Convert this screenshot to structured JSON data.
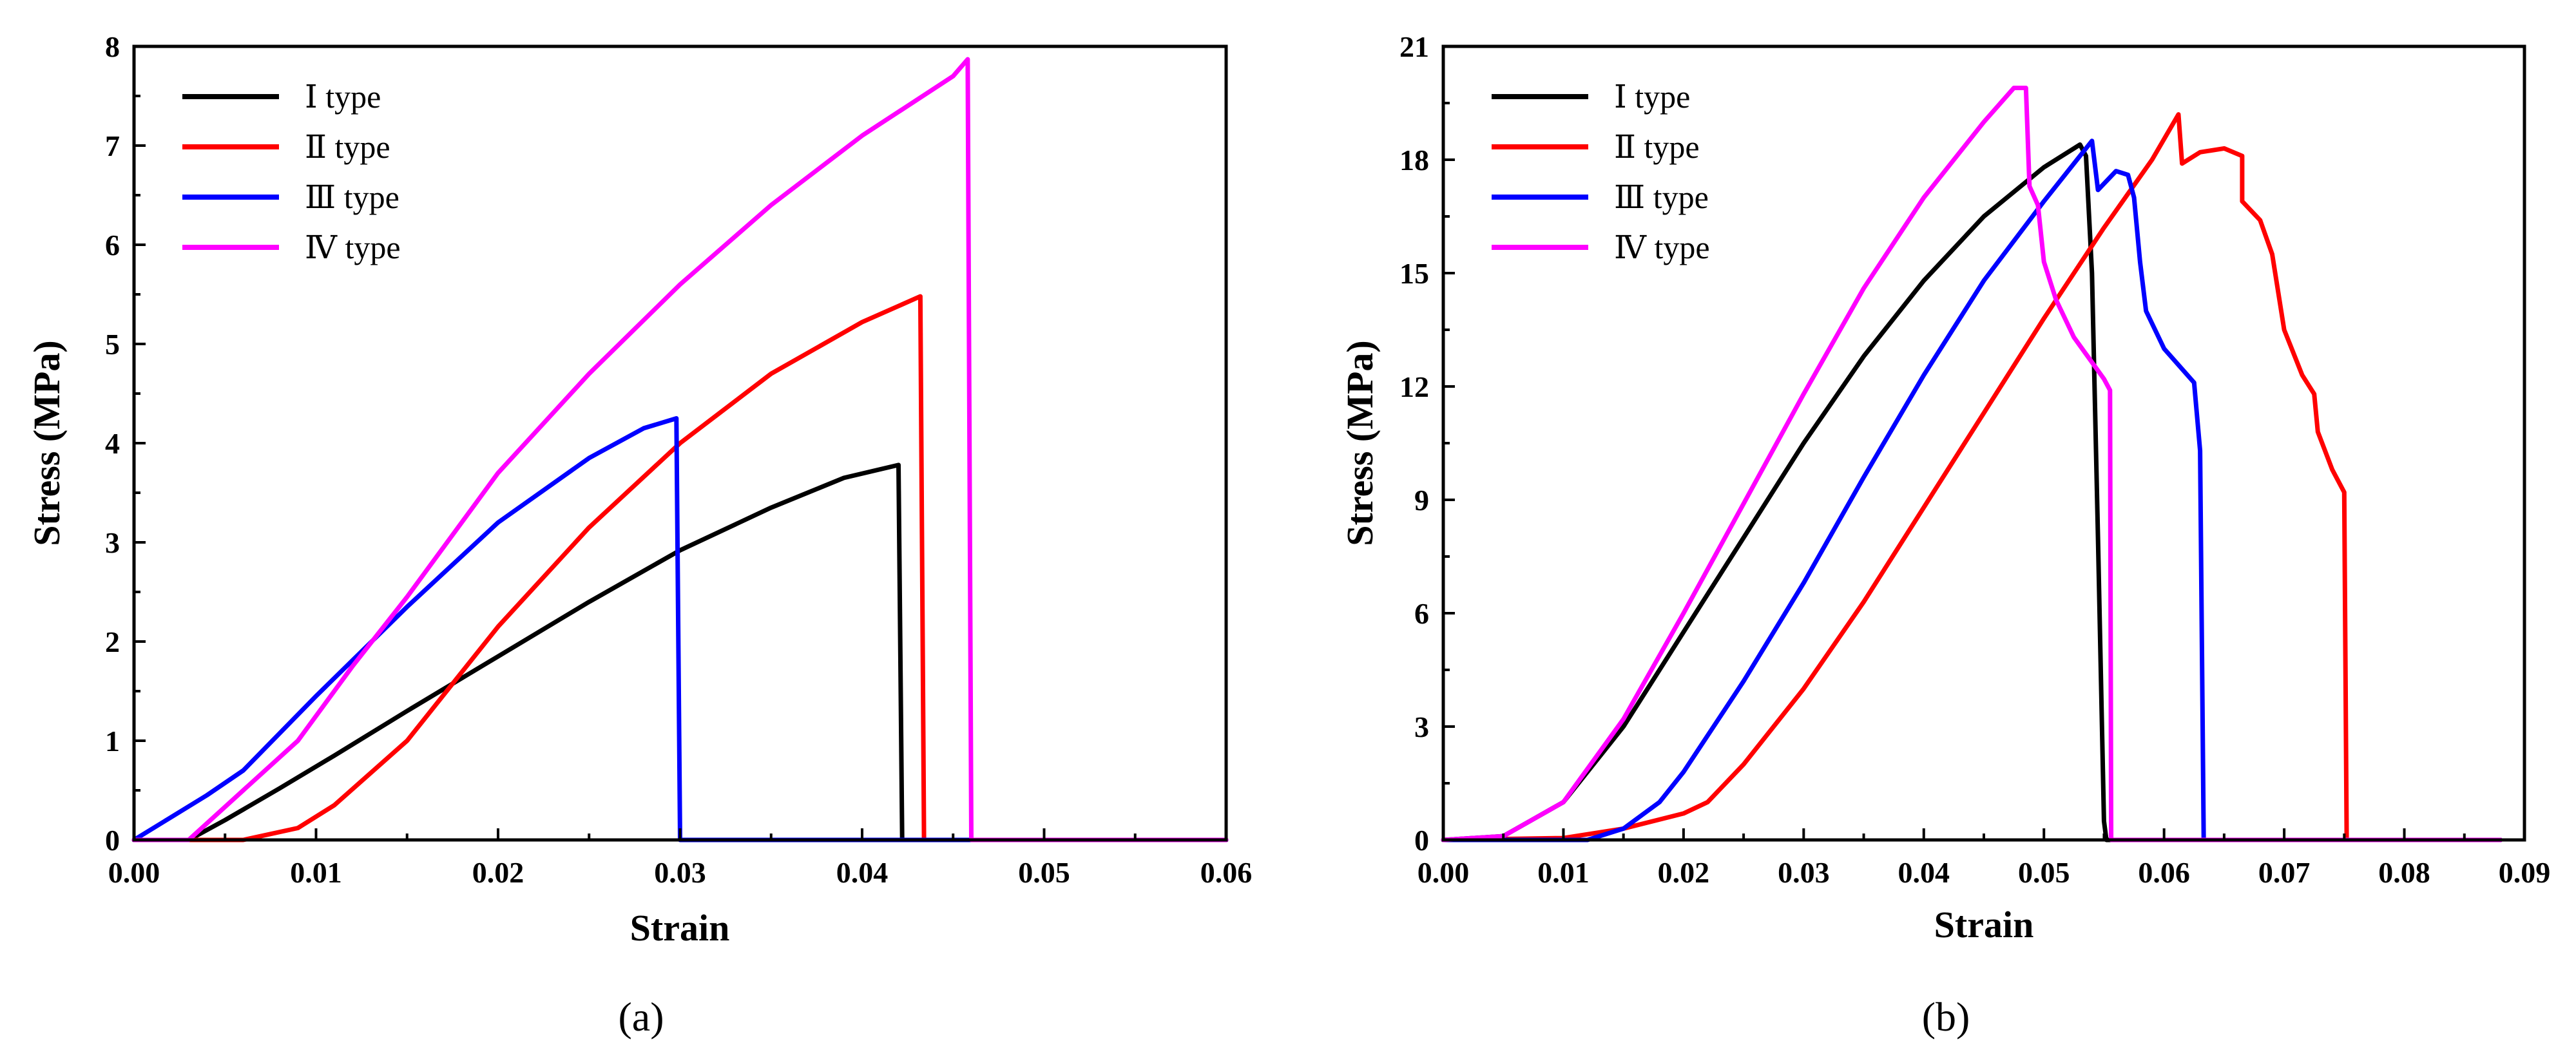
{
  "chart_data": [
    {
      "type": "line",
      "panel": "a",
      "panel_label": "(a)",
      "xlabel": "Strain",
      "ylabel": "Stress (MPa)",
      "xlim": [
        0,
        0.06
      ],
      "ylim": [
        0,
        8
      ],
      "xticks": [
        "0.00",
        "0.01",
        "0.02",
        "0.03",
        "0.04",
        "0.05",
        "0.06"
      ],
      "xtick_values": [
        0,
        0.01,
        0.02,
        0.03,
        0.04,
        0.05,
        0.06
      ],
      "yticks": [
        "0",
        "1",
        "2",
        "3",
        "4",
        "5",
        "6",
        "7",
        "8"
      ],
      "ytick_values": [
        0,
        1,
        2,
        3,
        4,
        5,
        6,
        7,
        8
      ],
      "legend_position": "top-left",
      "series": [
        {
          "name": "Ⅰ type",
          "color": "#000000",
          "points": [
            [
              0.0,
              0.0
            ],
            [
              0.003,
              0.0
            ],
            [
              0.005,
              0.2
            ],
            [
              0.008,
              0.52
            ],
            [
              0.011,
              0.85
            ],
            [
              0.015,
              1.3
            ],
            [
              0.02,
              1.85
            ],
            [
              0.025,
              2.4
            ],
            [
              0.03,
              2.92
            ],
            [
              0.035,
              3.35
            ],
            [
              0.039,
              3.65
            ],
            [
              0.042,
              3.78
            ],
            [
              0.0422,
              0.0
            ],
            [
              0.06,
              0.0
            ]
          ]
        },
        {
          "name": "Ⅱ type",
          "color": "#ff0000",
          "points": [
            [
              0.0,
              0.0
            ],
            [
              0.006,
              0.0
            ],
            [
              0.009,
              0.12
            ],
            [
              0.011,
              0.35
            ],
            [
              0.015,
              1.0
            ],
            [
              0.02,
              2.15
            ],
            [
              0.025,
              3.15
            ],
            [
              0.03,
              4.0
            ],
            [
              0.035,
              4.7
            ],
            [
              0.04,
              5.22
            ],
            [
              0.0432,
              5.48
            ],
            [
              0.0434,
              0.0
            ],
            [
              0.06,
              0.0
            ]
          ]
        },
        {
          "name": "Ⅲ type",
          "color": "#0000ff",
          "points": [
            [
              0.0,
              0.0
            ],
            [
              0.004,
              0.45
            ],
            [
              0.006,
              0.7
            ],
            [
              0.01,
              1.45
            ],
            [
              0.015,
              2.35
            ],
            [
              0.02,
              3.2
            ],
            [
              0.025,
              3.85
            ],
            [
              0.028,
              4.15
            ],
            [
              0.0298,
              4.25
            ],
            [
              0.03,
              0.0
            ],
            [
              0.06,
              0.0
            ]
          ]
        },
        {
          "name": "Ⅳ type",
          "color": "#ff00ff",
          "points": [
            [
              0.0,
              0.0
            ],
            [
              0.003,
              0.0
            ],
            [
              0.006,
              0.5
            ],
            [
              0.009,
              1.0
            ],
            [
              0.012,
              1.75
            ],
            [
              0.015,
              2.45
            ],
            [
              0.02,
              3.7
            ],
            [
              0.025,
              4.7
            ],
            [
              0.03,
              5.6
            ],
            [
              0.035,
              6.4
            ],
            [
              0.04,
              7.1
            ],
            [
              0.045,
              7.7
            ],
            [
              0.0458,
              7.87
            ],
            [
              0.046,
              0.0
            ],
            [
              0.06,
              0.0
            ]
          ]
        }
      ]
    },
    {
      "type": "line",
      "panel": "b",
      "panel_label": "(b)",
      "xlabel": "Strain",
      "ylabel": "Stress (MPa)",
      "xlim": [
        0,
        0.09
      ],
      "ylim": [
        0,
        21
      ],
      "xticks": [
        "0.00",
        "0.01",
        "0.02",
        "0.03",
        "0.04",
        "0.05",
        "0.06",
        "0.07",
        "0.08",
        "0.09"
      ],
      "xtick_values": [
        0,
        0.01,
        0.02,
        0.03,
        0.04,
        0.05,
        0.06,
        0.07,
        0.08,
        0.09
      ],
      "yticks": [
        "0",
        "3",
        "6",
        "9",
        "12",
        "15",
        "18",
        "21"
      ],
      "ytick_values": [
        0,
        3,
        6,
        9,
        12,
        15,
        18,
        21
      ],
      "legend_position": "top-left",
      "series": [
        {
          "name": "Ⅰ type",
          "color": "#000000",
          "points": [
            [
              0.0,
              0.0
            ],
            [
              0.005,
              0.1
            ],
            [
              0.01,
              1.0
            ],
            [
              0.015,
              3.0
            ],
            [
              0.02,
              5.5
            ],
            [
              0.025,
              8.0
            ],
            [
              0.03,
              10.5
            ],
            [
              0.035,
              12.8
            ],
            [
              0.04,
              14.8
            ],
            [
              0.045,
              16.5
            ],
            [
              0.05,
              17.8
            ],
            [
              0.053,
              18.4
            ],
            [
              0.0535,
              18.1
            ],
            [
              0.054,
              15.0
            ],
            [
              0.0545,
              8.0
            ],
            [
              0.055,
              0.5
            ],
            [
              0.0552,
              0.0
            ],
            [
              0.088,
              0.0
            ]
          ]
        },
        {
          "name": "Ⅱ type",
          "color": "#ff0000",
          "points": [
            [
              0.0,
              0.0
            ],
            [
              0.01,
              0.05
            ],
            [
              0.015,
              0.3
            ],
            [
              0.02,
              0.7
            ],
            [
              0.022,
              1.0
            ],
            [
              0.025,
              2.0
            ],
            [
              0.03,
              4.0
            ],
            [
              0.035,
              6.3
            ],
            [
              0.04,
              8.8
            ],
            [
              0.045,
              11.3
            ],
            [
              0.05,
              13.8
            ],
            [
              0.055,
              16.2
            ],
            [
              0.059,
              18.0
            ],
            [
              0.0612,
              19.2
            ],
            [
              0.0615,
              17.9
            ],
            [
              0.063,
              18.2
            ],
            [
              0.065,
              18.3
            ],
            [
              0.0665,
              18.1
            ],
            [
              0.0665,
              16.9
            ],
            [
              0.068,
              16.4
            ],
            [
              0.069,
              15.5
            ],
            [
              0.07,
              13.5
            ],
            [
              0.0715,
              12.3
            ],
            [
              0.0725,
              11.8
            ],
            [
              0.0728,
              10.8
            ],
            [
              0.074,
              9.8
            ],
            [
              0.075,
              9.2
            ],
            [
              0.0752,
              0.0
            ],
            [
              0.088,
              0.0
            ]
          ]
        },
        {
          "name": "Ⅲ type",
          "color": "#0000ff",
          "points": [
            [
              0.0,
              0.0
            ],
            [
              0.012,
              0.0
            ],
            [
              0.015,
              0.3
            ],
            [
              0.018,
              1.0
            ],
            [
              0.02,
              1.8
            ],
            [
              0.025,
              4.2
            ],
            [
              0.03,
              6.8
            ],
            [
              0.035,
              9.6
            ],
            [
              0.04,
              12.3
            ],
            [
              0.045,
              14.8
            ],
            [
              0.05,
              16.9
            ],
            [
              0.054,
              18.5
            ],
            [
              0.0545,
              17.2
            ],
            [
              0.056,
              17.7
            ],
            [
              0.057,
              17.6
            ],
            [
              0.0575,
              17.0
            ],
            [
              0.058,
              15.3
            ],
            [
              0.0585,
              14.0
            ],
            [
              0.06,
              13.0
            ],
            [
              0.0625,
              12.1
            ],
            [
              0.063,
              10.3
            ],
            [
              0.0633,
              0.0
            ],
            [
              0.088,
              0.0
            ]
          ]
        },
        {
          "name": "Ⅳ type",
          "color": "#ff00ff",
          "points": [
            [
              0.0,
              0.0
            ],
            [
              0.005,
              0.1
            ],
            [
              0.01,
              1.0
            ],
            [
              0.015,
              3.2
            ],
            [
              0.02,
              6.0
            ],
            [
              0.025,
              8.9
            ],
            [
              0.03,
              11.8
            ],
            [
              0.035,
              14.6
            ],
            [
              0.04,
              17.0
            ],
            [
              0.045,
              19.0
            ],
            [
              0.0475,
              19.9
            ],
            [
              0.0485,
              19.9
            ],
            [
              0.0488,
              17.3
            ],
            [
              0.0495,
              16.8
            ],
            [
              0.05,
              15.3
            ],
            [
              0.051,
              14.3
            ],
            [
              0.0525,
              13.3
            ],
            [
              0.055,
              12.2
            ],
            [
              0.0555,
              11.9
            ],
            [
              0.0556,
              0.0
            ],
            [
              0.088,
              0.0
            ]
          ]
        }
      ]
    }
  ]
}
